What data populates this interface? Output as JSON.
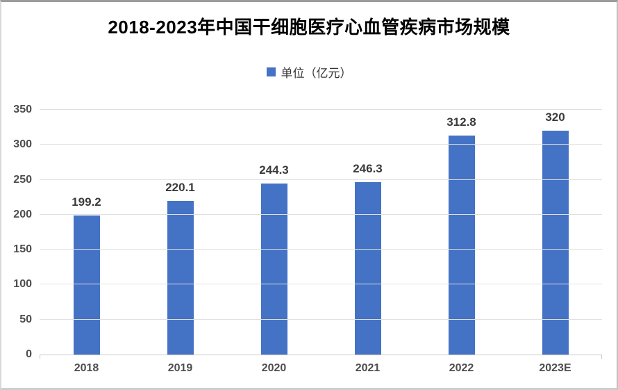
{
  "chart_data": {
    "type": "bar",
    "title": "2018-2023年中国干细胞医疗心血管疾病市场规模",
    "legend": "单位（亿元）",
    "legend_position": "top",
    "categories": [
      "2018",
      "2019",
      "2020",
      "2021",
      "2022",
      "2023E"
    ],
    "values": [
      199.2,
      220.1,
      244.3,
      246.3,
      312.8,
      320
    ],
    "value_labels": [
      "199.2",
      "220.1",
      "244.3",
      "246.3",
      "312.8",
      "320"
    ],
    "xlabel": "",
    "ylabel": "",
    "ylim": [
      0,
      350
    ],
    "y_ticks": [
      0,
      50,
      100,
      150,
      200,
      250,
      300,
      350
    ],
    "grid": "horizontal",
    "bar_color": "#4472C4",
    "gridline_color": "#e0e0e0",
    "axis_line_color": "#c9c9c9",
    "title_color": "#000000",
    "label_color": "#3a3a3a",
    "tick_color": "#4d4d4d"
  }
}
